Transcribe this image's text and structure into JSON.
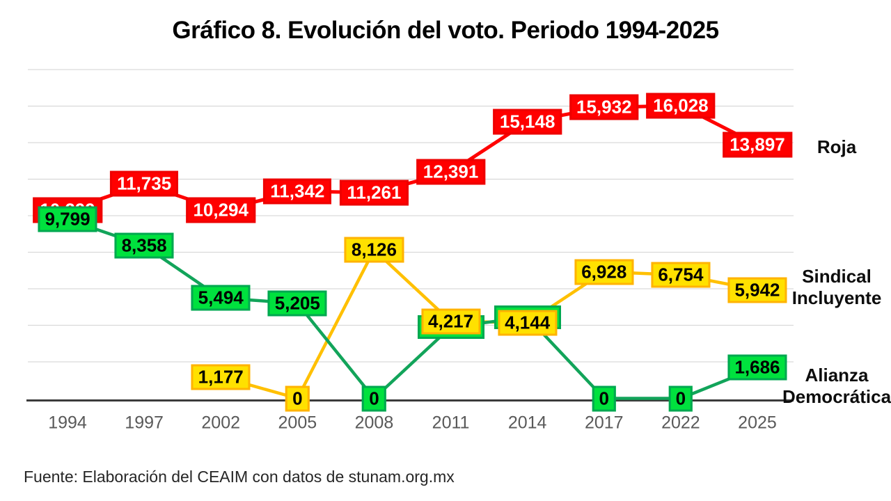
{
  "title": "Gráfico 8. Evolución del voto. Periodo 1994-2025",
  "source_note": "Fuente: Elaboración del CEAIM con datos de stunam.org.mx",
  "chart_data": {
    "type": "line",
    "title": "Gráfico 8. Evolución del voto. Periodo 1994-2025",
    "categories": [
      "1994",
      "1997",
      "2002",
      "2005",
      "2008",
      "2011",
      "2014",
      "2017",
      "2022",
      "2025"
    ],
    "ylim": [
      0,
      18000
    ],
    "grid_step": 2000,
    "grid_color": "#D9D9D9",
    "axis_line_color": "#3b3b3b",
    "tick_label_color": "#595959",
    "legend_position": "right-of-last-point",
    "series": [
      {
        "name": "Roja",
        "line_color": "#FF0000",
        "box_fill": "#FF0000",
        "box_border": "#EE0000",
        "text_color": "#FFFFFF",
        "values": [
          10299,
          11735,
          10294,
          11342,
          11261,
          12391,
          15148,
          15932,
          16028,
          13897
        ],
        "labels": [
          "10,299",
          "11,735",
          "10,294",
          "11,342",
          "11,261",
          "12,391",
          "15,148",
          "15,932",
          "16,028",
          "13,897"
        ],
        "note": "1994 label partially hidden behind green 9,799 label"
      },
      {
        "name": "Sindical Incluyente",
        "line_color": "#FFC000",
        "box_fill": "#FFE100",
        "box_border": "#FFB300",
        "text_color": "#000000",
        "values": [
          null,
          null,
          1177,
          0,
          8126,
          4217,
          4144,
          6928,
          6754,
          5942
        ],
        "labels": [
          null,
          null,
          "1,177",
          "0",
          "8,126",
          "4,217",
          "4,144",
          "6,928",
          "6,754",
          "5,942"
        ]
      },
      {
        "name": "Alianza Democrática",
        "line_color": "#12A45A",
        "box_fill": "#00E13E",
        "box_border": "#00A850",
        "text_color": "#000000",
        "values": [
          9799,
          8358,
          5494,
          5205,
          0,
          3900,
          4450,
          0,
          0,
          1686
        ],
        "labels": [
          "9,799",
          "8,358",
          "5,494",
          "5,205",
          "0",
          "",
          "",
          "0",
          "0",
          "1,686"
        ],
        "note": "2011 and 2014 labels hidden behind yellow 4,217 and 4,144 boxes"
      }
    ]
  }
}
